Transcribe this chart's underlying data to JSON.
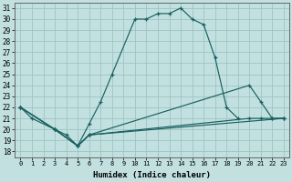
{
  "xlabel": "Humidex (Indice chaleur)",
  "background_color": "#c2e0e0",
  "grid_color": "#9dc4c4",
  "line_color": "#1a6060",
  "xlim": [
    -0.5,
    23.5
  ],
  "ylim": [
    17.5,
    31.5
  ],
  "xticks": [
    0,
    1,
    2,
    3,
    4,
    5,
    6,
    7,
    8,
    9,
    10,
    11,
    12,
    13,
    14,
    15,
    16,
    17,
    18,
    19,
    20,
    21,
    22,
    23
  ],
  "yticks": [
    18,
    19,
    20,
    21,
    22,
    23,
    24,
    25,
    26,
    27,
    28,
    29,
    30,
    31
  ],
  "lines": [
    {
      "x": [
        0,
        1,
        3,
        4,
        5,
        6,
        7,
        8,
        10,
        11,
        12,
        13,
        14,
        15,
        16,
        17,
        18,
        19
      ],
      "y": [
        22,
        21,
        20,
        19.5,
        18.5,
        20.5,
        22.5,
        25,
        30,
        30,
        30.5,
        30.5,
        31,
        30,
        29.5,
        26.5,
        22,
        21
      ]
    },
    {
      "x": [
        0,
        3,
        5,
        6,
        23
      ],
      "y": [
        22,
        20,
        18.5,
        19.5,
        21
      ]
    },
    {
      "x": [
        0,
        3,
        5,
        6,
        20,
        21,
        22,
        23
      ],
      "y": [
        22,
        20,
        18.5,
        19.5,
        24,
        22.5,
        21,
        21
      ]
    },
    {
      "x": [
        0,
        3,
        5,
        6,
        20,
        21,
        22,
        23
      ],
      "y": [
        22,
        20,
        18.5,
        19.5,
        21,
        21,
        21,
        21
      ]
    }
  ]
}
